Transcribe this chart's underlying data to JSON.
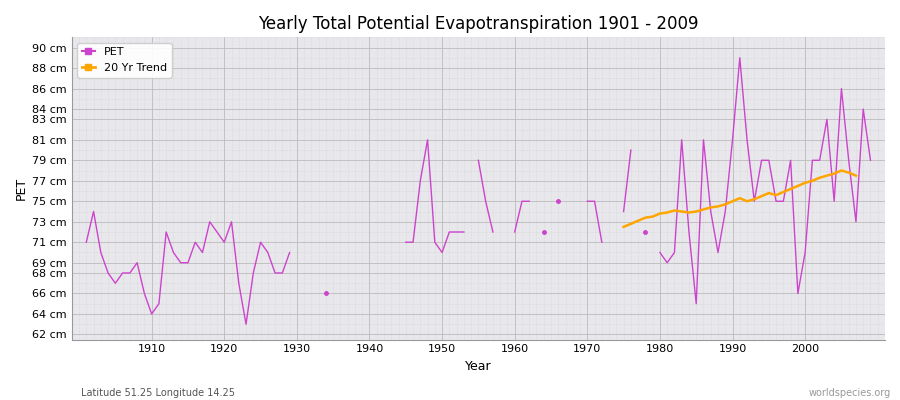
{
  "title": "Yearly Total Potential Evapotranspiration 1901 - 2009",
  "xlabel": "Year",
  "ylabel": "PET",
  "subtitle_left": "Latitude 51.25 Longitude 14.25",
  "subtitle_right": "worldspecies.org",
  "background_color": "#ffffff",
  "plot_bg_color": "#e8e8ec",
  "pet_color": "#cc44cc",
  "trend_color": "#ffa500",
  "ytick_labels": [
    "62 cm",
    "64 cm",
    "66 cm",
    "68 cm",
    "69 cm",
    "71 cm",
    "73 cm",
    "75 cm",
    "77 cm",
    "79 cm",
    "81 cm",
    "83 cm",
    "84 cm",
    "86 cm",
    "88 cm",
    "90 cm"
  ],
  "ytick_values": [
    62,
    64,
    66,
    68,
    69,
    71,
    73,
    75,
    77,
    79,
    81,
    83,
    84,
    86,
    88,
    90
  ],
  "ylim": [
    61.5,
    91
  ],
  "xlim": [
    1899,
    2011
  ],
  "years": [
    1901,
    1902,
    1903,
    1904,
    1905,
    1906,
    1907,
    1908,
    1909,
    1910,
    1911,
    1912,
    1913,
    1914,
    1915,
    1916,
    1917,
    1918,
    1919,
    1920,
    1921,
    1922,
    1923,
    1924,
    1925,
    1926,
    1927,
    1928,
    1929,
    1930,
    1931,
    1932,
    1933,
    1934,
    1935,
    1936,
    1937,
    1938,
    1939,
    1940,
    1941,
    1942,
    1943,
    1944,
    1945,
    1946,
    1947,
    1948,
    1949,
    1950,
    1951,
    1952,
    1953,
    1954,
    1955,
    1956,
    1957,
    1958,
    1959,
    1960,
    1961,
    1962,
    1963,
    1964,
    1965,
    1966,
    1967,
    1968,
    1969,
    1970,
    1971,
    1972,
    1973,
    1974,
    1975,
    1976,
    1977,
    1978,
    1979,
    1980,
    1981,
    1982,
    1983,
    1984,
    1985,
    1986,
    1987,
    1988,
    1989,
    1990,
    1991,
    1992,
    1993,
    1994,
    1995,
    1996,
    1997,
    1998,
    1999,
    2000,
    2001,
    2002,
    2003,
    2004,
    2005,
    2006,
    2007,
    2008,
    2009
  ],
  "pet_values": [
    71,
    74,
    70,
    68,
    67,
    68,
    68,
    69,
    66,
    64,
    65,
    72,
    70,
    69,
    69,
    71,
    70,
    73,
    72,
    71,
    73,
    67,
    63,
    68,
    71,
    70,
    68,
    68,
    70,
    null,
    null,
    null,
    null,
    66,
    null,
    null,
    null,
    null,
    null,
    null,
    null,
    null,
    null,
    null,
    71,
    71,
    77,
    81,
    71,
    70,
    72,
    72,
    72,
    null,
    79,
    75,
    72,
    null,
    null,
    72,
    75,
    75,
    null,
    72,
    null,
    75,
    null,
    null,
    null,
    75,
    75,
    71,
    null,
    null,
    74,
    80,
    null,
    72,
    null,
    70,
    69,
    70,
    81,
    72,
    65,
    81,
    74,
    70,
    74,
    81,
    89,
    81,
    75,
    79,
    79,
    75,
    75,
    79,
    66,
    70,
    79,
    79,
    83,
    75,
    86,
    79,
    73,
    84,
    79
  ],
  "trend_years": [
    1975,
    1976,
    1977,
    1978,
    1979,
    1980,
    1981,
    1982,
    1983,
    1984,
    1985,
    1986,
    1987,
    1988,
    1989,
    1990,
    1991,
    1992,
    1993,
    1994,
    1995,
    1996,
    1997,
    1998,
    1999,
    2000,
    2001,
    2002,
    2003,
    2004,
    2005,
    2006,
    2007
  ],
  "trend_values": [
    72.5,
    72.8,
    73.1,
    73.4,
    73.5,
    73.8,
    73.9,
    74.1,
    74.0,
    73.9,
    74.0,
    74.2,
    74.4,
    74.5,
    74.7,
    75.0,
    75.3,
    75.0,
    75.2,
    75.5,
    75.8,
    75.6,
    75.9,
    76.2,
    76.5,
    76.8,
    77.0,
    77.3,
    77.5,
    77.7,
    78.0,
    77.8,
    77.5
  ]
}
